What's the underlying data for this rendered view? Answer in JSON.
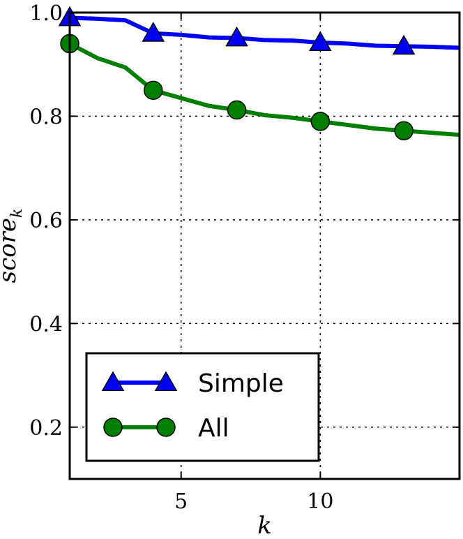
{
  "chart_data": {
    "type": "line",
    "xlabel": "k",
    "ylabel_base": "score",
    "ylabel_subscript": "k",
    "xlim": [
      1,
      15
    ],
    "ylim": [
      0.1,
      1.0
    ],
    "xticks": [
      5,
      10
    ],
    "xtick_labels": [
      "5",
      "10"
    ],
    "yticks": [
      0.2,
      0.4,
      0.6,
      0.8,
      1.0
    ],
    "ytick_labels": [
      "0.2",
      "0.4",
      "0.6",
      "0.8",
      "1.0"
    ],
    "grid": true,
    "legend_position": "lower-left",
    "series": [
      {
        "name": "Simple",
        "color": "#0000ff",
        "marker": "triangle",
        "x": [
          1,
          2,
          3,
          4,
          5,
          6,
          7,
          8,
          9,
          10,
          11,
          12,
          13,
          14,
          15
        ],
        "y": [
          0.99,
          0.988,
          0.985,
          0.96,
          0.957,
          0.952,
          0.951,
          0.947,
          0.946,
          0.942,
          0.94,
          0.936,
          0.935,
          0.934,
          0.932
        ],
        "markers_at": [
          1,
          4,
          7,
          10,
          13
        ]
      },
      {
        "name": "All",
        "color": "#007f00",
        "marker": "circle",
        "x": [
          1,
          2,
          3,
          4,
          5,
          6,
          7,
          8,
          9,
          10,
          11,
          12,
          13,
          14,
          15
        ],
        "y": [
          0.94,
          0.912,
          0.894,
          0.85,
          0.835,
          0.82,
          0.812,
          0.802,
          0.797,
          0.79,
          0.783,
          0.776,
          0.772,
          0.768,
          0.764
        ],
        "markers_at": [
          1,
          4,
          7,
          10,
          13
        ]
      }
    ]
  },
  "colors": {
    "marker_edge": "#000000",
    "grid": "#000000"
  }
}
